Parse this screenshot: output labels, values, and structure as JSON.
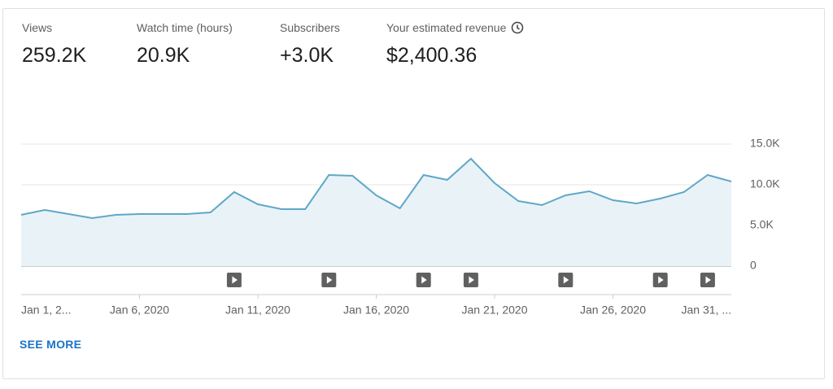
{
  "metrics": [
    {
      "label": "Views",
      "value": "259.2K"
    },
    {
      "label": "Watch time (hours)",
      "value": "20.9K"
    },
    {
      "label": "Subscribers",
      "value": "+3.0K"
    },
    {
      "label": "Your estimated revenue",
      "value": "$2,400.36"
    }
  ],
  "see_more": "SEE MORE",
  "chart_data": {
    "type": "line",
    "color": "#5fa7c9",
    "fill": "#e9f3f7",
    "grid": true,
    "categories": [
      "Jan 1, 2...",
      null,
      null,
      null,
      null,
      "Jan 6, 2020",
      null,
      null,
      null,
      null,
      "Jan 11, 2020",
      null,
      null,
      null,
      null,
      "Jan 16, 2020",
      null,
      null,
      null,
      null,
      "Jan 21, 2020",
      null,
      null,
      null,
      null,
      "Jan 26, 2020",
      null,
      null,
      null,
      null,
      "Jan 31, ..."
    ],
    "values": [
      6300,
      6900,
      6400,
      5900,
      6300,
      6400,
      6400,
      6400,
      6600,
      9100,
      7600,
      7000,
      7000,
      11200,
      11100,
      8700,
      7100,
      11200,
      10600,
      13200,
      10200,
      8000,
      7500,
      8700,
      9200,
      8100,
      7700,
      8300,
      9100,
      11200,
      10400
    ],
    "ylim": [
      0,
      15000
    ],
    "yticks": [
      0,
      {
        "value": 5000,
        "label": "5.0K"
      },
      {
        "value": 10000,
        "label": "10.0K"
      },
      {
        "value": 15000,
        "label": "15.0K"
      }
    ]
  }
}
